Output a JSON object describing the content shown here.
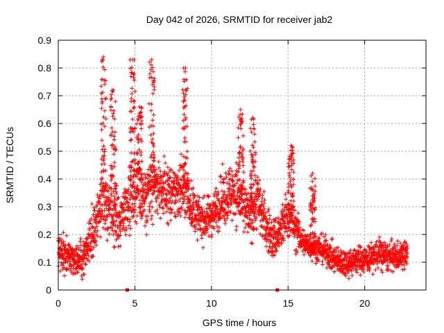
{
  "chart_data": {
    "type": "scatter",
    "title": "Day 042 of 2026, SRMTID for receiver jab2",
    "xlabel": "GPS time / hours",
    "ylabel": "SRMTID / TECUs",
    "xlim": [
      0,
      24
    ],
    "ylim": [
      0,
      0.9
    ],
    "xticks": [
      "0",
      "5",
      "10",
      "15",
      "20"
    ],
    "xtick_values": [
      0,
      5,
      10,
      15,
      20
    ],
    "yticks": [
      "0",
      "0.1",
      "0.2",
      "0.3",
      "0.4",
      "0.5",
      "0.6",
      "0.7",
      "0.8",
      "0.9"
    ],
    "ytick_values": [
      0,
      0.1,
      0.2,
      0.3,
      0.4,
      0.5,
      0.6,
      0.7,
      0.8,
      0.9
    ],
    "grid": true,
    "marker": "+",
    "series_color": "#ff0000",
    "envelope": {
      "x": [
        0,
        0.5,
        1.0,
        1.5,
        2.0,
        2.5,
        2.9,
        3.3,
        3.6,
        4.0,
        4.5,
        4.9,
        5.2,
        5.6,
        6.0,
        6.5,
        7.0,
        7.5,
        8.0,
        8.5,
        9.0,
        9.5,
        10.0,
        10.5,
        11.0,
        11.5,
        12.0,
        12.5,
        13.0,
        13.5,
        14.0,
        14.5,
        15.0,
        15.5,
        16.0,
        16.5,
        17.0,
        17.5,
        18.0,
        18.5,
        19.0,
        19.5,
        20.0,
        20.5,
        21.0,
        21.5,
        22.0,
        22.8
      ],
      "median": [
        0.14,
        0.13,
        0.1,
        0.11,
        0.17,
        0.25,
        0.35,
        0.31,
        0.28,
        0.25,
        0.32,
        0.36,
        0.38,
        0.33,
        0.35,
        0.37,
        0.36,
        0.34,
        0.38,
        0.33,
        0.27,
        0.25,
        0.27,
        0.31,
        0.34,
        0.36,
        0.31,
        0.26,
        0.33,
        0.24,
        0.18,
        0.21,
        0.28,
        0.22,
        0.17,
        0.16,
        0.15,
        0.14,
        0.11,
        0.1,
        0.1,
        0.11,
        0.11,
        0.12,
        0.13,
        0.12,
        0.12,
        0.13
      ],
      "spread": [
        0.05,
        0.05,
        0.04,
        0.05,
        0.06,
        0.07,
        0.12,
        0.1,
        0.09,
        0.08,
        0.08,
        0.11,
        0.11,
        0.09,
        0.12,
        0.08,
        0.08,
        0.08,
        0.1,
        0.07,
        0.06,
        0.06,
        0.06,
        0.07,
        0.08,
        0.09,
        0.09,
        0.07,
        0.09,
        0.07,
        0.06,
        0.07,
        0.07,
        0.06,
        0.04,
        0.04,
        0.04,
        0.04,
        0.04,
        0.04,
        0.04,
        0.04,
        0.04,
        0.04,
        0.05,
        0.04,
        0.04,
        0.04
      ]
    },
    "bursts": [
      {
        "x": 2.95,
        "ymax": 0.84
      },
      {
        "x": 3.6,
        "ymax": 0.72
      },
      {
        "x": 4.85,
        "ymax": 0.83
      },
      {
        "x": 5.3,
        "ymax": 0.66
      },
      {
        "x": 6.1,
        "ymax": 0.83
      },
      {
        "x": 8.3,
        "ymax": 0.8
      },
      {
        "x": 11.9,
        "ymax": 0.65
      },
      {
        "x": 12.7,
        "ymax": 0.62
      },
      {
        "x": 15.2,
        "ymax": 0.52
      },
      {
        "x": 16.6,
        "ymax": 0.42
      }
    ],
    "zero_points": [
      4.5,
      14.3
    ],
    "point_count": 2600
  }
}
